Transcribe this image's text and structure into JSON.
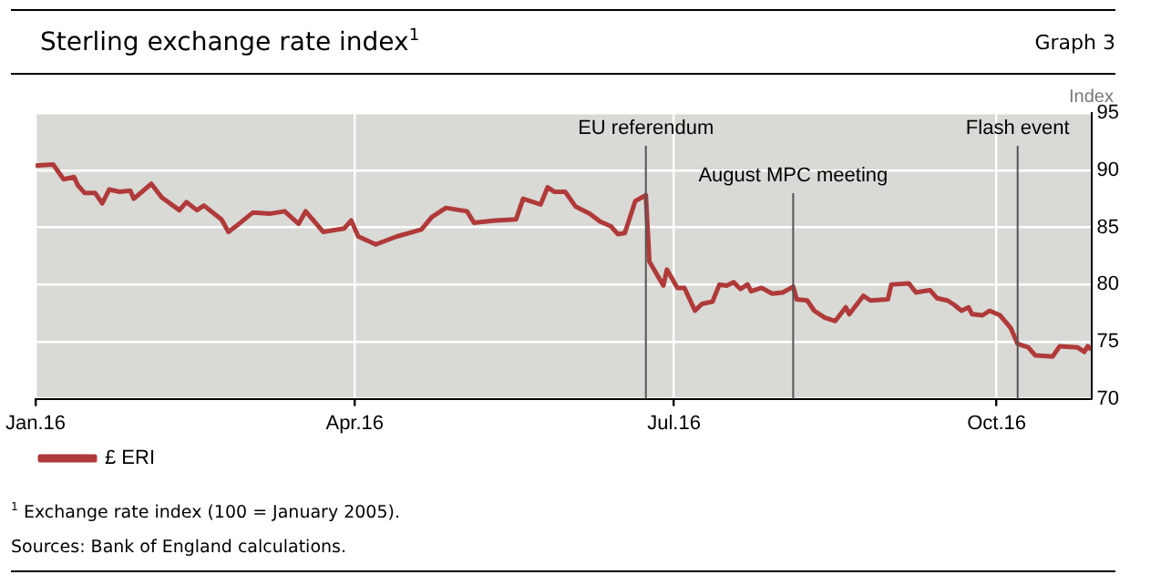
{
  "chart_data": {
    "type": "line",
    "title": "Sterling exchange rate index$^{1}$",
    "ylabel": "Index",
    "annotations": [
      "Graph 3",
      "$^{1}$  Exchange rate index (100 = January 2005).",
      "Sources: Bank of England calculations."
    ],
    "xlim": [
      "2016-01-01",
      "2016-10-28"
    ],
    "xticks": [
      {
        "value": "2016-01-01",
        "label": "Jan.16"
      },
      {
        "value": "2016-04-01",
        "label": "Apr.16"
      },
      {
        "value": "2016-07-01",
        "label": "Jul.16"
      },
      {
        "value": "2016-10-01",
        "label": "Oct.16"
      }
    ],
    "ylim": [
      70,
      95
    ],
    "yticks": [
      70,
      75,
      80,
      85,
      90,
      95
    ],
    "grid": true,
    "legend": "bottom left",
    "marker": "none",
    "line_style": "solid",
    "ref_lines": [
      {
        "axis": "x",
        "value": "2016-06-23",
        "label": "EU referendum",
        "color": "#555555"
      },
      {
        "axis": "x",
        "value": "2016-08-04",
        "label": "August MPC meeting",
        "color": "#555555"
      },
      {
        "axis": "x",
        "value": "2016-10-07",
        "label": "Flash event",
        "color": "#555555"
      }
    ],
    "series": [
      {
        "name": "£ ERI",
        "color": "#b03a3a",
        "x": [
          "2016-01-01",
          "2016-01-06",
          "2016-01-09",
          "2016-01-12",
          "2016-01-13",
          "2016-01-15",
          "2016-01-18",
          "2016-01-20",
          "2016-01-22",
          "2016-01-25",
          "2016-01-28",
          "2016-01-29",
          "2016-02-03",
          "2016-02-06",
          "2016-02-11",
          "2016-02-13",
          "2016-02-16",
          "2016-02-18",
          "2016-02-23",
          "2016-02-25",
          "2016-02-28",
          "2016-03-03",
          "2016-03-08",
          "2016-03-12",
          "2016-03-16",
          "2016-03-18",
          "2016-03-23",
          "2016-03-29",
          "2016-03-31",
          "2016-04-02",
          "2016-04-07",
          "2016-04-13",
          "2016-04-20",
          "2016-04-23",
          "2016-04-27",
          "2016-05-03",
          "2016-05-05",
          "2016-05-11",
          "2016-05-17",
          "2016-05-19",
          "2016-05-24",
          "2016-05-26",
          "2016-05-28",
          "2016-05-31",
          "2016-06-03",
          "2016-06-07",
          "2016-06-10",
          "2016-06-13",
          "2016-06-15",
          "2016-06-17",
          "2016-06-20",
          "2016-06-23",
          "2016-06-24",
          "2016-06-28",
          "2016-06-29",
          "2016-07-02",
          "2016-07-04",
          "2016-07-07",
          "2016-07-09",
          "2016-07-12",
          "2016-07-14",
          "2016-07-16",
          "2016-07-18",
          "2016-07-20",
          "2016-07-22",
          "2016-07-23",
          "2016-07-26",
          "2016-07-29",
          "2016-08-01",
          "2016-08-04",
          "2016-08-05",
          "2016-08-08",
          "2016-08-10",
          "2016-08-13",
          "2016-08-16",
          "2016-08-19",
          "2016-08-20",
          "2016-08-24",
          "2016-08-26",
          "2016-08-31",
          "2016-09-01",
          "2016-09-06",
          "2016-09-08",
          "2016-09-12",
          "2016-09-14",
          "2016-09-17",
          "2016-09-19",
          "2016-09-21",
          "2016-09-23",
          "2016-09-24",
          "2016-09-27",
          "2016-09-29",
          "2016-10-02",
          "2016-10-05",
          "2016-10-07",
          "2016-10-10",
          "2016-10-12",
          "2016-10-17",
          "2016-10-19",
          "2016-10-24",
          "2016-10-26",
          "2016-10-27",
          "2016-10-28"
        ],
        "values": [
          90.4,
          90.5,
          89.2,
          89.4,
          88.7,
          88.0,
          88.0,
          87.1,
          88.3,
          88.1,
          88.2,
          87.5,
          88.8,
          87.6,
          86.5,
          87.2,
          86.5,
          86.9,
          85.7,
          84.6,
          85.3,
          86.3,
          86.2,
          86.4,
          85.3,
          86.4,
          84.6,
          84.9,
          85.6,
          84.2,
          83.5,
          84.2,
          84.8,
          85.9,
          86.7,
          86.4,
          85.4,
          85.6,
          85.7,
          87.5,
          87.0,
          88.5,
          88.1,
          88.1,
          86.8,
          86.2,
          85.5,
          85.1,
          84.4,
          84.5,
          87.3,
          87.8,
          82.0,
          79.9,
          81.3,
          79.7,
          79.7,
          77.7,
          78.3,
          78.5,
          80.0,
          79.9,
          80.2,
          79.6,
          80.0,
          79.4,
          79.7,
          79.2,
          79.3,
          79.8,
          78.7,
          78.6,
          77.7,
          77.1,
          76.8,
          78.0,
          77.4,
          79.0,
          78.6,
          78.7,
          80.0,
          80.1,
          79.3,
          79.5,
          78.8,
          78.6,
          78.2,
          77.7,
          78.0,
          77.4,
          77.3,
          77.7,
          77.3,
          76.2,
          74.8,
          74.5,
          73.8,
          73.7,
          74.6,
          74.5,
          74.1,
          74.6,
          74.3
        ]
      }
    ]
  }
}
